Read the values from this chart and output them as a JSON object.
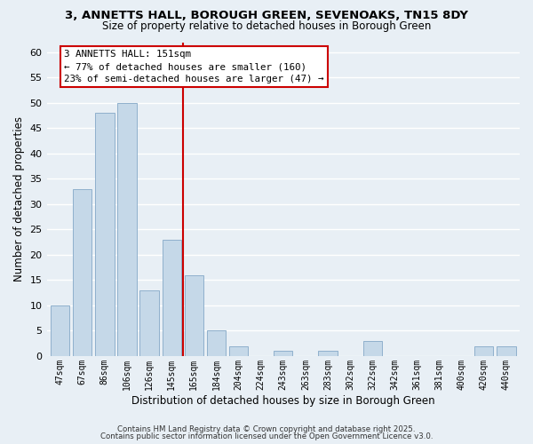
{
  "title1": "3, ANNETTS HALL, BOROUGH GREEN, SEVENOAKS, TN15 8DY",
  "title2": "Size of property relative to detached houses in Borough Green",
  "xlabel": "Distribution of detached houses by size in Borough Green",
  "ylabel": "Number of detached properties",
  "bar_labels": [
    "47sqm",
    "67sqm",
    "86sqm",
    "106sqm",
    "126sqm",
    "145sqm",
    "165sqm",
    "184sqm",
    "204sqm",
    "224sqm",
    "243sqm",
    "263sqm",
    "283sqm",
    "302sqm",
    "322sqm",
    "342sqm",
    "361sqm",
    "381sqm",
    "400sqm",
    "420sqm",
    "440sqm"
  ],
  "bar_values": [
    10,
    33,
    48,
    50,
    13,
    23,
    16,
    5,
    2,
    0,
    1,
    0,
    1,
    0,
    3,
    0,
    0,
    0,
    0,
    2,
    2
  ],
  "bar_color": "#c5d8e8",
  "bar_edge_color": "#8fb0cc",
  "vline_color": "#cc0000",
  "annotation_title": "3 ANNETTS HALL: 151sqm",
  "annotation_line1": "← 77% of detached houses are smaller (160)",
  "annotation_line2": "23% of semi-detached houses are larger (47) →",
  "ylim": [
    0,
    62
  ],
  "yticks": [
    0,
    5,
    10,
    15,
    20,
    25,
    30,
    35,
    40,
    45,
    50,
    55,
    60
  ],
  "background_color": "#e8eff5",
  "grid_color": "#ffffff",
  "footer1": "Contains HM Land Registry data © Crown copyright and database right 2025.",
  "footer2": "Contains public sector information licensed under the Open Government Licence v3.0."
}
